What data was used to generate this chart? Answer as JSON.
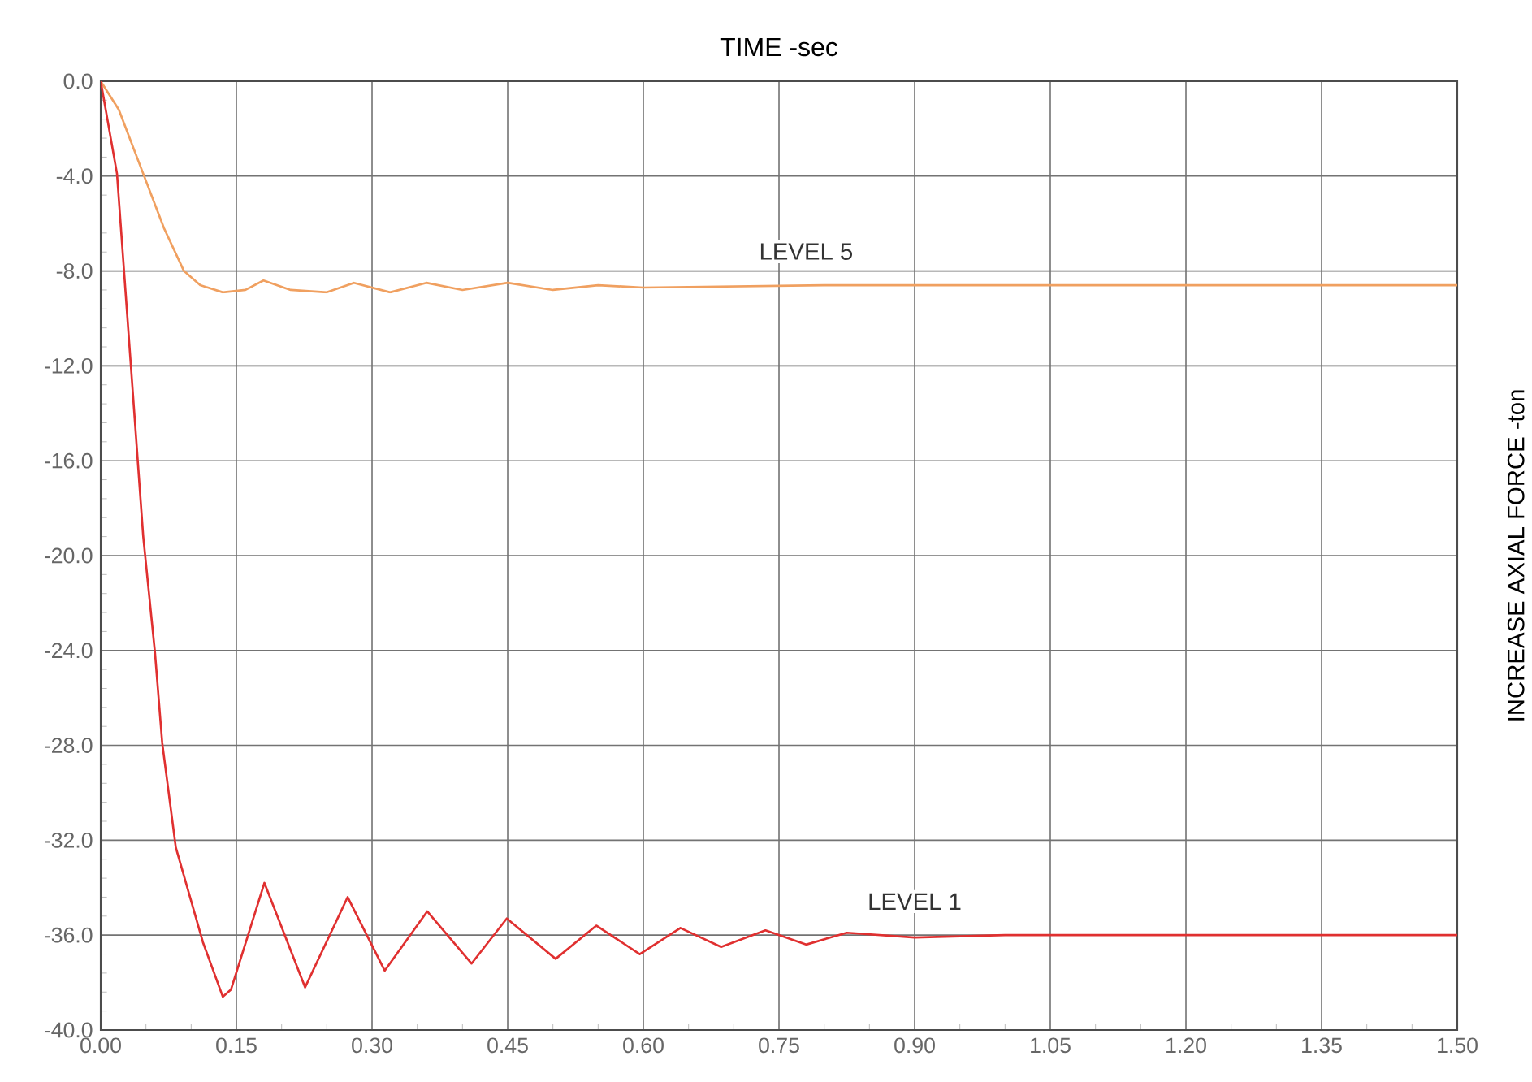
{
  "chart_data": {
    "type": "line",
    "xlabel": "TIME -sec",
    "ylabel": "INCREASE AXIAL FORCE -ton",
    "xlim": [
      0,
      1.5
    ],
    "ylim": [
      -40,
      0
    ],
    "xticks": [
      {
        "value": 0,
        "label": "0.00"
      },
      {
        "value": 0.15,
        "label": "0.15"
      },
      {
        "value": 0.3,
        "label": "0.30"
      },
      {
        "value": 0.45,
        "label": "0.45"
      },
      {
        "value": 0.6,
        "label": "0.60"
      },
      {
        "value": 0.75,
        "label": "0.75"
      },
      {
        "value": 0.9,
        "label": "0.90"
      },
      {
        "value": 1.05,
        "label": "1.05"
      },
      {
        "value": 1.2,
        "label": "1.20"
      },
      {
        "value": 1.35,
        "label": "1.35"
      },
      {
        "value": 1.5,
        "label": "1.50"
      }
    ],
    "yticks": [
      {
        "value": 0,
        "label": "0.0"
      },
      {
        "value": -4,
        "label": "-4.0"
      },
      {
        "value": -8,
        "label": "-8.0"
      },
      {
        "value": -12,
        "label": "-12.0"
      },
      {
        "value": -16,
        "label": "-16.0"
      },
      {
        "value": -20,
        "label": "-20.0"
      },
      {
        "value": -24,
        "label": "-24.0"
      },
      {
        "value": -28,
        "label": "-28.0"
      },
      {
        "value": -32,
        "label": "-32.0"
      },
      {
        "value": -36,
        "label": "-36.0"
      },
      {
        "value": -40,
        "label": "-40.0"
      }
    ],
    "grid": true,
    "legend": false,
    "marker": "none",
    "line_style": "solid",
    "series": [
      {
        "name": "LEVEL 5",
        "color": "#f0a060",
        "x": [
          0,
          0.02,
          0.047,
          0.07,
          0.092,
          0.11,
          0.135,
          0.16,
          0.18,
          0.21,
          0.25,
          0.28,
          0.32,
          0.36,
          0.4,
          0.45,
          0.5,
          0.55,
          0.6,
          0.8,
          1.0,
          1.5
        ],
        "values": [
          0,
          -1.2,
          -3.9,
          -6.2,
          -8.0,
          -8.6,
          -8.9,
          -8.8,
          -8.4,
          -8.8,
          -8.9,
          -8.5,
          -8.9,
          -8.5,
          -8.8,
          -8.5,
          -8.8,
          -8.6,
          -8.7,
          -8.6,
          -8.6,
          -8.6
        ]
      },
      {
        "name": "LEVEL 1",
        "color": "#e03030",
        "x": [
          0,
          0.018,
          0.047,
          0.06,
          0.068,
          0.083,
          0.113,
          0.135,
          0.144,
          0.181,
          0.226,
          0.273,
          0.314,
          0.361,
          0.41,
          0.449,
          0.503,
          0.548,
          0.596,
          0.641,
          0.686,
          0.735,
          0.78,
          0.825,
          0.9,
          1.0,
          1.2,
          1.5
        ],
        "values": [
          0,
          -3.9,
          -19.2,
          -24.1,
          -27.9,
          -32.3,
          -36.3,
          -38.6,
          -38.3,
          -33.8,
          -38.2,
          -34.4,
          -37.5,
          -35.0,
          -37.2,
          -35.3,
          -37.0,
          -35.6,
          -36.8,
          -35.7,
          -36.5,
          -35.8,
          -36.4,
          -35.9,
          -36.1,
          -36.0,
          -36.0,
          -36.0
        ]
      }
    ]
  }
}
